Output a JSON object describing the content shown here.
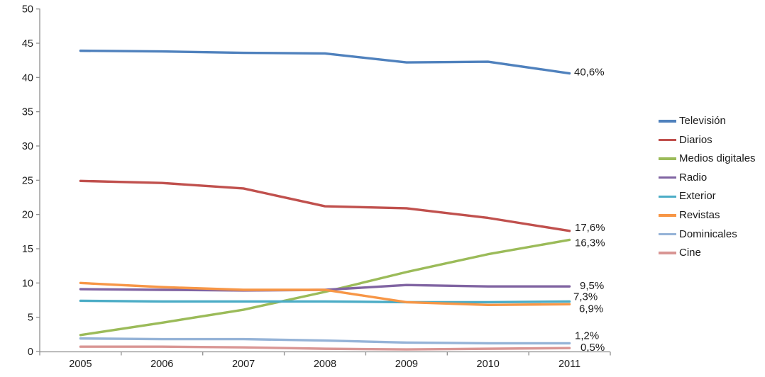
{
  "chart_data": {
    "type": "line",
    "title": "",
    "xlabel": "",
    "ylabel": "",
    "x_categories": [
      "2005",
      "2006",
      "2007",
      "2008",
      "2009",
      "2010",
      "2011"
    ],
    "y_ticks": [
      0,
      5,
      10,
      15,
      20,
      25,
      30,
      35,
      40,
      45,
      50
    ],
    "ylim": [
      0,
      50
    ],
    "grid": false,
    "legend_position": "right",
    "axis_color": "#8e8e8e",
    "text_color": "#1a1a1a",
    "series": [
      {
        "name": "Televisión",
        "color": "#4F81BD",
        "values": [
          43.9,
          43.8,
          43.6,
          43.5,
          42.2,
          42.3,
          40.6
        ],
        "end_label": "40,6%"
      },
      {
        "name": "Diarios",
        "color": "#C0504D",
        "values": [
          24.9,
          24.6,
          23.8,
          21.2,
          20.9,
          19.5,
          17.6
        ],
        "end_label": "17,6%"
      },
      {
        "name": "Medios digitales",
        "color": "#9BBB59",
        "values": [
          2.4,
          4.2,
          6.1,
          8.7,
          11.6,
          14.2,
          16.3
        ],
        "end_label": "16,3%"
      },
      {
        "name": "Radio",
        "color": "#8064A2",
        "values": [
          9.1,
          9.0,
          8.9,
          9.0,
          9.7,
          9.5,
          9.5
        ],
        "end_label": "9,5%"
      },
      {
        "name": "Exterior",
        "color": "#4BACC6",
        "values": [
          7.4,
          7.3,
          7.3,
          7.3,
          7.2,
          7.2,
          7.3
        ],
        "end_label": "7,3%"
      },
      {
        "name": "Revistas",
        "color": "#F79646",
        "values": [
          10.0,
          9.4,
          9.0,
          9.0,
          7.2,
          6.8,
          6.9
        ],
        "end_label": "6,9%"
      },
      {
        "name": "Dominicales",
        "color": "#95B3D7",
        "values": [
          1.9,
          1.8,
          1.8,
          1.6,
          1.3,
          1.2,
          1.2
        ],
        "end_label": "1,2%"
      },
      {
        "name": "Cine",
        "color": "#D99694",
        "values": [
          0.7,
          0.7,
          0.6,
          0.4,
          0.3,
          0.4,
          0.5
        ],
        "end_label": "0,5%"
      }
    ]
  }
}
